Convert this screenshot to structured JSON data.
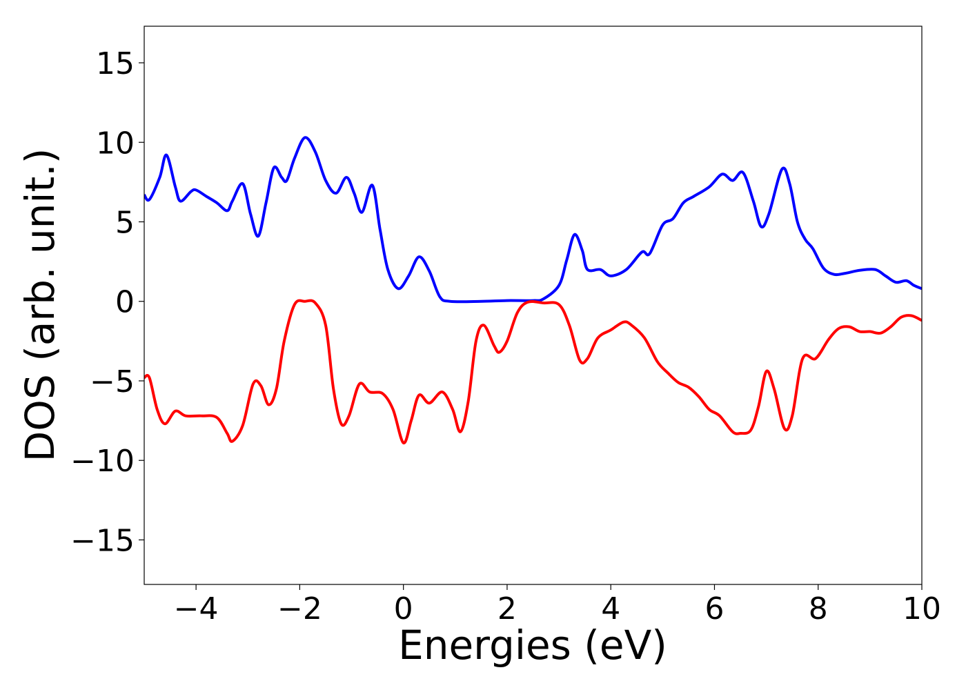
{
  "chart_data": {
    "type": "line",
    "xlabel": "Energies (eV)",
    "ylabel": "DOS (arb. unit.)",
    "xlim": [
      -5,
      10
    ],
    "ylim": [
      -17.8,
      17.3
    ],
    "xticks": [
      {
        "value": -4,
        "label": "−4"
      },
      {
        "value": -2,
        "label": "−2"
      },
      0,
      2,
      4,
      6,
      8,
      10
    ],
    "yticks": [
      {
        "value": -15,
        "label": "−15"
      },
      {
        "value": -10,
        "label": "−10"
      },
      {
        "value": -5,
        "label": "−5"
      },
      0,
      5,
      10,
      15
    ],
    "grid": false,
    "series": [
      {
        "color": "#0000ff",
        "x": [
          -5,
          -4.9,
          -4.7,
          -4.57,
          -4.4,
          -4.3,
          -4.1,
          -4.0,
          -3.8,
          -3.6,
          -3.4,
          -3.3,
          -3.1,
          -2.95,
          -2.8,
          -2.65,
          -2.5,
          -2.35,
          -2.25,
          -2.1,
          -1.9,
          -1.7,
          -1.5,
          -1.3,
          -1.1,
          -0.95,
          -0.8,
          -0.6,
          -0.45,
          -0.3,
          -0.1,
          0.1,
          0.3,
          0.5,
          0.7,
          0.9,
          1.5,
          2.0,
          2.5,
          2.7,
          3.0,
          3.15,
          3.3,
          3.45,
          3.55,
          3.8,
          4.0,
          4.3,
          4.6,
          4.75,
          5.0,
          5.2,
          5.4,
          5.6,
          5.9,
          6.15,
          6.35,
          6.55,
          6.75,
          6.9,
          7.05,
          7.3,
          7.45,
          7.6,
          7.75,
          7.9,
          8.1,
          8.3,
          8.5,
          8.8,
          9.1,
          9.3,
          9.5,
          9.7,
          9.85,
          10
        ],
        "values": [
          6.7,
          6.4,
          7.8,
          9.2,
          7.2,
          6.3,
          6.9,
          7.0,
          6.6,
          6.2,
          5.7,
          6.3,
          7.4,
          5.5,
          4.1,
          6.2,
          8.4,
          7.8,
          7.6,
          9.0,
          10.3,
          9.4,
          7.6,
          6.8,
          7.8,
          6.8,
          5.6,
          7.3,
          4.5,
          2.0,
          0.8,
          1.6,
          2.8,
          1.9,
          0.3,
          0.0,
          0.0,
          0.05,
          0.05,
          0.15,
          1.0,
          2.6,
          4.2,
          3.2,
          2.0,
          2.0,
          1.6,
          2.0,
          3.1,
          3.0,
          4.8,
          5.2,
          6.2,
          6.6,
          7.2,
          8.0,
          7.6,
          8.1,
          6.3,
          4.7,
          5.5,
          8.3,
          7.4,
          5.0,
          3.9,
          3.3,
          2.1,
          1.7,
          1.75,
          1.95,
          2.0,
          1.6,
          1.2,
          1.3,
          1.0,
          0.8
        ]
      },
      {
        "color": "#ff0000",
        "x": [
          -5,
          -4.9,
          -4.75,
          -4.6,
          -4.4,
          -4.2,
          -3.9,
          -3.6,
          -3.4,
          -3.3,
          -3.1,
          -2.9,
          -2.75,
          -2.6,
          -2.45,
          -2.3,
          -2.1,
          -1.9,
          -1.7,
          -1.5,
          -1.35,
          -1.2,
          -1.05,
          -0.85,
          -0.65,
          -0.4,
          -0.2,
          0.0,
          0.15,
          0.3,
          0.5,
          0.75,
          0.95,
          1.1,
          1.25,
          1.4,
          1.55,
          1.75,
          1.85,
          2.0,
          2.2,
          2.4,
          2.7,
          3.0,
          3.2,
          3.4,
          3.55,
          3.75,
          4.0,
          4.25,
          4.4,
          4.65,
          4.9,
          5.1,
          5.3,
          5.5,
          5.7,
          5.9,
          6.1,
          6.35,
          6.5,
          6.7,
          6.85,
          7.0,
          7.15,
          7.35,
          7.5,
          7.7,
          7.95,
          8.2,
          8.4,
          8.6,
          8.8,
          9.0,
          9.2,
          9.4,
          9.6,
          9.8,
          10
        ],
        "values": [
          -4.8,
          -4.8,
          -6.8,
          -7.7,
          -6.9,
          -7.2,
          -7.2,
          -7.3,
          -8.3,
          -8.8,
          -7.8,
          -5.2,
          -5.3,
          -6.5,
          -5.5,
          -2.5,
          -0.2,
          0.0,
          -0.1,
          -1.5,
          -5.5,
          -7.7,
          -7.2,
          -5.2,
          -5.7,
          -5.8,
          -6.8,
          -8.9,
          -7.5,
          -5.9,
          -6.4,
          -5.7,
          -6.8,
          -8.2,
          -6.3,
          -2.5,
          -1.5,
          -2.8,
          -3.2,
          -2.5,
          -0.7,
          -0.05,
          -0.1,
          -0.2,
          -1.5,
          -3.7,
          -3.6,
          -2.3,
          -1.8,
          -1.3,
          -1.5,
          -2.3,
          -3.8,
          -4.5,
          -5.1,
          -5.4,
          -6.0,
          -6.8,
          -7.2,
          -8.2,
          -8.3,
          -8.1,
          -6.6,
          -4.4,
          -5.5,
          -8.0,
          -7.2,
          -3.6,
          -3.6,
          -2.4,
          -1.7,
          -1.6,
          -1.9,
          -1.9,
          -2.0,
          -1.6,
          -1.0,
          -0.9,
          -1.2
        ]
      }
    ]
  }
}
